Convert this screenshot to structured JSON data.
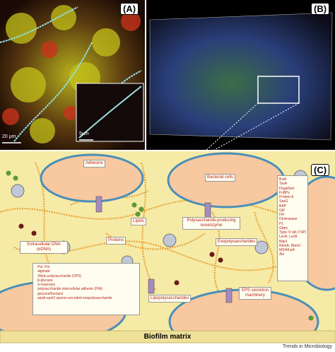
{
  "panels": {
    "a": {
      "label": "(A)",
      "scale_bar": "20 μm",
      "inset_scale_bar": "5μm"
    },
    "b": {
      "label": "(B)"
    },
    "c": {
      "label": "(C)",
      "labels": {
        "adhesins": "Adhesins",
        "bacterial_cells": "Bacterial cells",
        "exoenzyme": "Polysaccharide-producing exoenzyme",
        "lipids": "Lipids",
        "proteins": "Proteins",
        "exopolysaccharides": "Exopolysaccharides",
        "edna": "Extracellular DNA (eDNA)",
        "lipopolysaccharides": "Lipopolysaccharides",
        "secretion": "EPS secretion machinery"
      },
      "polysaccharides": [
        "Pel, Psl",
        "alginate",
        "Vibrio polysaccharide (VPS)",
        "β-glucans",
        "α-mannans",
        "polysaccharide intercellular adhesin (PIA)",
        "glucans/fructans",
        "epsA-epsO operon-encoded exopolysaccharide"
      ],
      "proteins": [
        "BslA",
        "TasA",
        "Flagellum",
        "FnBPs",
        "Protein A",
        "SasG",
        "BAP",
        "GtF",
        "FtF",
        "Dextranase",
        "P1",
        "Gbps",
        "Type IV pili (T4P)",
        "LecA, LecB",
        "Bap1",
        "RbmA, RbmC",
        "MSHA pili",
        "Als"
      ],
      "footer": "Biofilm matrix"
    }
  },
  "credit": "Trends in Microbiology"
}
